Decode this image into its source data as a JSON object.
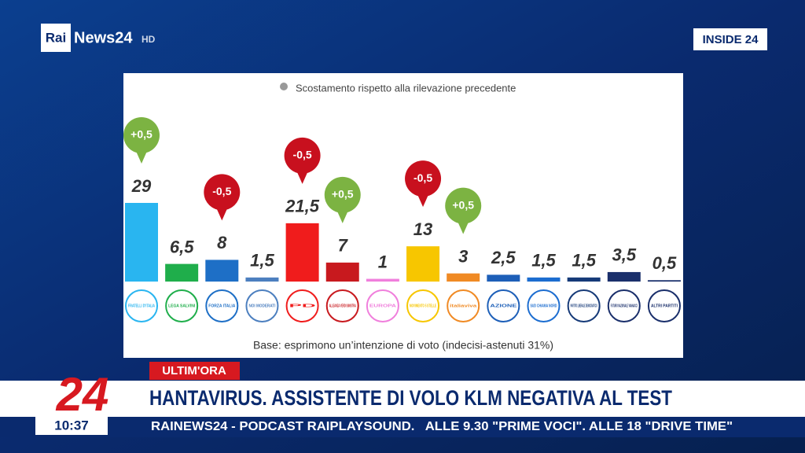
{
  "header": {
    "logo_rai": "Rai",
    "logo_news": "News24",
    "logo_hd": "HD",
    "program": "INSIDE 24"
  },
  "chart_data": {
    "type": "bar",
    "legend_note": "Scostamento rispetto alla rilevazione precedente",
    "base_note": "Base: esprimono un’intenzione di voto (indecisi-astenuti 31%)",
    "categories": [
      "FRATELLI D'ITALIA",
      "LEGA SALVINI",
      "FORZA ITALIA",
      "NOI MODERATI",
      "PD",
      "ALLEANZA VERDI SINISTRA",
      "EUROPA",
      "MOVIMENTO 5 STELLE",
      "italiaviva",
      "AZIONE",
      "SUD CHIAMA NORD",
      "PARTITO LIBERALE DEMOCRATICO",
      "FUTURO NAZIONALE VANNACCI",
      "ALTRI PARTITI"
    ],
    "values": [
      29,
      6.5,
      8,
      1.5,
      21.5,
      7,
      1,
      13,
      3,
      2.5,
      1.5,
      1.5,
      3.5,
      0.5
    ],
    "value_labels": [
      "29",
      "6,5",
      "8",
      "1,5",
      "21,5",
      "7",
      "1",
      "13",
      "3",
      "2,5",
      "1,5",
      "1,5",
      "3,5",
      "0,5"
    ],
    "colors": [
      "#29b5f0",
      "#1fae4b",
      "#1e6fc6",
      "#4c7fbf",
      "#f01c1c",
      "#c8191e",
      "#f07fdc",
      "#f7c600",
      "#f08a24",
      "#1d5fb8",
      "#1c6dd0",
      "#163a78",
      "#1a2f6b",
      "#1a2f6b"
    ],
    "changes": [
      0.5,
      null,
      -0.5,
      null,
      -0.5,
      0.5,
      null,
      -0.5,
      0.5,
      null,
      null,
      null,
      null,
      null
    ],
    "change_labels": [
      "+0,5",
      null,
      "-0,5",
      null,
      "-0,5",
      "+0,5",
      null,
      "-0,5",
      "+0,5",
      null,
      null,
      null,
      null,
      null
    ],
    "change_colors": {
      "up": "#7cb342",
      "down": "#c8101e"
    }
  },
  "footer": {
    "flash": "ULTIM'ORA",
    "channel": "24",
    "headline": "HANTAVIRUS. ASSISTENTE DI VOLO KLM NEGATIVA AL TEST",
    "time": "10:37",
    "ticker": "RAINEWS24 - PODCAST RAIPLAYSOUND.   ALLE 9.30 \"PRIME VOCI\". ALLE 18 \"DRIVE TIME\""
  }
}
